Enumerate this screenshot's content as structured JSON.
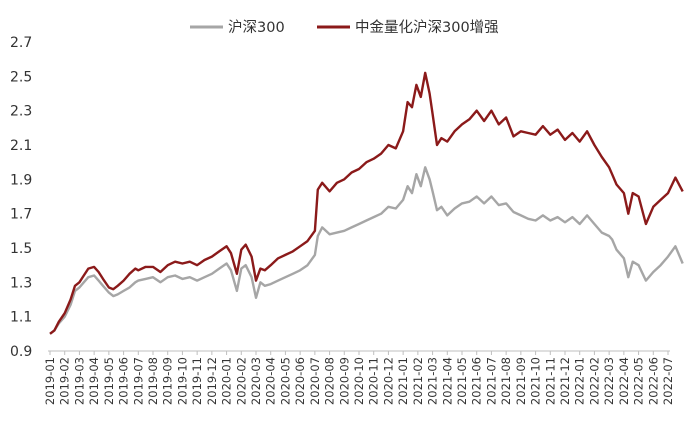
{
  "chart_data": {
    "type": "line",
    "title": "",
    "xlabel": "",
    "ylabel": "",
    "ylim": [
      0.9,
      2.7
    ],
    "yticks": [
      "0.9",
      "1.1",
      "1.3",
      "1.5",
      "1.7",
      "1.9",
      "2.1",
      "2.3",
      "2.5",
      "2.7"
    ],
    "x_categories": [
      "2019-01",
      "2019-02",
      "2019-03",
      "2019-04",
      "2019-05",
      "2019-06",
      "2019-07",
      "2019-08",
      "2019-09",
      "2019-10",
      "2019-11",
      "2019-12",
      "2020-01",
      "2020-02",
      "2020-03",
      "2020-04",
      "2020-05",
      "2020-06",
      "2020-07",
      "2020-08",
      "2020-09",
      "2020-10",
      "2020-11",
      "2020-12",
      "2021-01",
      "2021-02",
      "2021-03",
      "2021-04",
      "2021-05",
      "2021-06",
      "2021-07",
      "2021-08",
      "2021-09",
      "2021-10",
      "2021-11",
      "2021-12",
      "2022-01",
      "2022-02",
      "2022-03",
      "2022-04",
      "2022-05",
      "2022-06",
      "2022-07"
    ],
    "legend_position": "top",
    "grid": false,
    "series": [
      {
        "name": "沪深300",
        "color": "#a6a6a6",
        "x": [
          0,
          0.3,
          0.6,
          1.0,
          1.4,
          1.7,
          2.0,
          2.3,
          2.6,
          3.0,
          3.3,
          3.6,
          4.0,
          4.3,
          4.6,
          5.0,
          5.4,
          5.8,
          6.0,
          6.5,
          7.0,
          7.5,
          8.0,
          8.5,
          9.0,
          9.5,
          10.0,
          10.5,
          11.0,
          11.5,
          12.0,
          12.3,
          12.7,
          13.0,
          13.3,
          13.7,
          14.0,
          14.3,
          14.6,
          15.0,
          15.5,
          16.0,
          16.5,
          17.0,
          17.5,
          18.0,
          18.2,
          18.5,
          19.0,
          19.5,
          20.0,
          20.5,
          21.0,
          21.5,
          22.0,
          22.5,
          23.0,
          23.5,
          24.0,
          24.3,
          24.6,
          24.9,
          25.2,
          25.5,
          25.8,
          26.0,
          26.3,
          26.6,
          27.0,
          27.5,
          28.0,
          28.5,
          29.0,
          29.5,
          30.0,
          30.5,
          31.0,
          31.5,
          32.0,
          32.5,
          33.0,
          33.5,
          34.0,
          34.5,
          35.0,
          35.5,
          36.0,
          36.5,
          37.0,
          37.5,
          38.0,
          38.2,
          38.5,
          39.0,
          39.3,
          39.6,
          40.0,
          40.5,
          41.0,
          41.5,
          42.0,
          42.5,
          43.0
        ],
        "values": [
          1.0,
          1.02,
          1.06,
          1.1,
          1.17,
          1.25,
          1.27,
          1.3,
          1.33,
          1.34,
          1.31,
          1.28,
          1.24,
          1.22,
          1.23,
          1.25,
          1.27,
          1.3,
          1.31,
          1.32,
          1.33,
          1.3,
          1.33,
          1.34,
          1.32,
          1.33,
          1.31,
          1.33,
          1.35,
          1.38,
          1.41,
          1.37,
          1.25,
          1.38,
          1.4,
          1.33,
          1.21,
          1.3,
          1.28,
          1.29,
          1.31,
          1.33,
          1.35,
          1.37,
          1.4,
          1.46,
          1.57,
          1.62,
          1.58,
          1.59,
          1.6,
          1.62,
          1.64,
          1.66,
          1.68,
          1.7,
          1.74,
          1.73,
          1.78,
          1.86,
          1.82,
          1.93,
          1.86,
          1.97,
          1.9,
          1.83,
          1.72,
          1.74,
          1.69,
          1.73,
          1.76,
          1.77,
          1.8,
          1.76,
          1.8,
          1.75,
          1.76,
          1.71,
          1.69,
          1.67,
          1.66,
          1.69,
          1.66,
          1.68,
          1.65,
          1.68,
          1.64,
          1.69,
          1.64,
          1.59,
          1.57,
          1.55,
          1.49,
          1.44,
          1.33,
          1.42,
          1.4,
          1.31,
          1.36,
          1.4,
          1.45,
          1.51,
          1.41
        ]
      },
      {
        "name": "中金量化沪深300增强",
        "color": "#8b1a1a",
        "x": [
          0,
          0.3,
          0.6,
          1.0,
          1.4,
          1.7,
          2.0,
          2.3,
          2.6,
          3.0,
          3.3,
          3.6,
          4.0,
          4.3,
          4.6,
          5.0,
          5.4,
          5.8,
          6.0,
          6.5,
          7.0,
          7.5,
          8.0,
          8.5,
          9.0,
          9.5,
          10.0,
          10.5,
          11.0,
          11.5,
          12.0,
          12.3,
          12.7,
          13.0,
          13.3,
          13.7,
          14.0,
          14.3,
          14.6,
          15.0,
          15.5,
          16.0,
          16.5,
          17.0,
          17.5,
          18.0,
          18.2,
          18.5,
          19.0,
          19.5,
          20.0,
          20.5,
          21.0,
          21.5,
          22.0,
          22.5,
          23.0,
          23.5,
          24.0,
          24.3,
          24.6,
          24.9,
          25.2,
          25.5,
          25.8,
          26.0,
          26.3,
          26.6,
          27.0,
          27.5,
          28.0,
          28.5,
          29.0,
          29.5,
          30.0,
          30.5,
          31.0,
          31.5,
          32.0,
          32.5,
          33.0,
          33.5,
          34.0,
          34.5,
          35.0,
          35.5,
          36.0,
          36.5,
          37.0,
          37.5,
          38.0,
          38.2,
          38.5,
          39.0,
          39.3,
          39.6,
          40.0,
          40.5,
          41.0,
          41.5,
          42.0,
          42.5,
          43.0
        ],
        "values": [
          1.0,
          1.02,
          1.07,
          1.12,
          1.2,
          1.28,
          1.3,
          1.34,
          1.38,
          1.39,
          1.36,
          1.32,
          1.27,
          1.26,
          1.28,
          1.31,
          1.35,
          1.38,
          1.37,
          1.39,
          1.39,
          1.36,
          1.4,
          1.42,
          1.41,
          1.42,
          1.4,
          1.43,
          1.45,
          1.48,
          1.51,
          1.47,
          1.35,
          1.49,
          1.52,
          1.45,
          1.31,
          1.38,
          1.37,
          1.4,
          1.44,
          1.46,
          1.48,
          1.51,
          1.54,
          1.6,
          1.84,
          1.88,
          1.83,
          1.88,
          1.9,
          1.94,
          1.96,
          2.0,
          2.02,
          2.05,
          2.1,
          2.08,
          2.18,
          2.35,
          2.32,
          2.45,
          2.38,
          2.52,
          2.4,
          2.28,
          2.1,
          2.14,
          2.12,
          2.18,
          2.22,
          2.25,
          2.3,
          2.24,
          2.3,
          2.22,
          2.26,
          2.15,
          2.18,
          2.17,
          2.16,
          2.21,
          2.16,
          2.19,
          2.13,
          2.17,
          2.12,
          2.18,
          2.1,
          2.03,
          1.97,
          1.93,
          1.87,
          1.82,
          1.7,
          1.82,
          1.8,
          1.64,
          1.74,
          1.78,
          1.82,
          1.91,
          1.83
        ]
      }
    ]
  }
}
